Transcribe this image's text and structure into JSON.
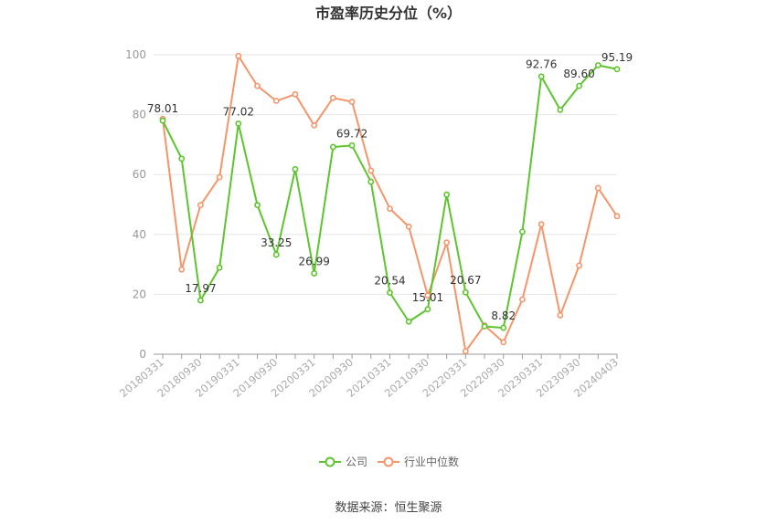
{
  "chart_data": {
    "type": "line",
    "title": "市盈率历史分位（%）",
    "source": "数据来源：恒生聚源",
    "ylim": [
      0,
      100
    ],
    "yticks": [
      "0",
      "20",
      "40",
      "60",
      "80",
      "100"
    ],
    "grid": true,
    "legend_position": "bottom",
    "x": [
      "20180331",
      "20180630",
      "20180930",
      "20181231",
      "20190331",
      "20190630",
      "20190930",
      "20191231",
      "20200331",
      "20200630",
      "20200930",
      "20201231",
      "20210331",
      "20210630",
      "20210930",
      "20211231",
      "20220331",
      "20220630",
      "20220930",
      "20221231",
      "20230331",
      "20230630",
      "20230930",
      "20231231",
      "20240403"
    ],
    "xticks": [
      "20180331",
      "20180930",
      "20190331",
      "20190930",
      "20200331",
      "20200930",
      "20210331",
      "20210930",
      "20220331",
      "20220930",
      "20230331",
      "20230930",
      "20240403"
    ],
    "series": [
      {
        "name": "公司",
        "color": "#5ec42d",
        "values": [
          78.01,
          65.3,
          17.97,
          28.9,
          77.02,
          49.8,
          33.25,
          61.8,
          26.99,
          69.2,
          69.72,
          57.6,
          20.54,
          10.9,
          15.01,
          53.3,
          20.67,
          9.3,
          8.82,
          40.9,
          92.76,
          81.6,
          89.6,
          96.5,
          95.19
        ],
        "labels": [
          "78.01",
          "",
          "17.97",
          "",
          "77.02",
          "",
          "33.25",
          "",
          "26.99",
          "",
          "69.72",
          "",
          "20.54",
          "",
          "15.01",
          "",
          "20.67",
          "",
          "8.82",
          "",
          "92.76",
          "",
          "89.60",
          "",
          "95.19"
        ]
      },
      {
        "name": "行业中位数",
        "color": "#f5956b",
        "values": [
          78.6,
          28.3,
          49.8,
          59.1,
          99.6,
          89.6,
          84.6,
          86.8,
          76.4,
          85.6,
          84.3,
          61.3,
          48.6,
          42.6,
          19.6,
          37.3,
          1.0,
          9.6,
          4.0,
          18.3,
          43.4,
          13.0,
          29.6,
          55.5,
          46.1
        ]
      }
    ]
  }
}
